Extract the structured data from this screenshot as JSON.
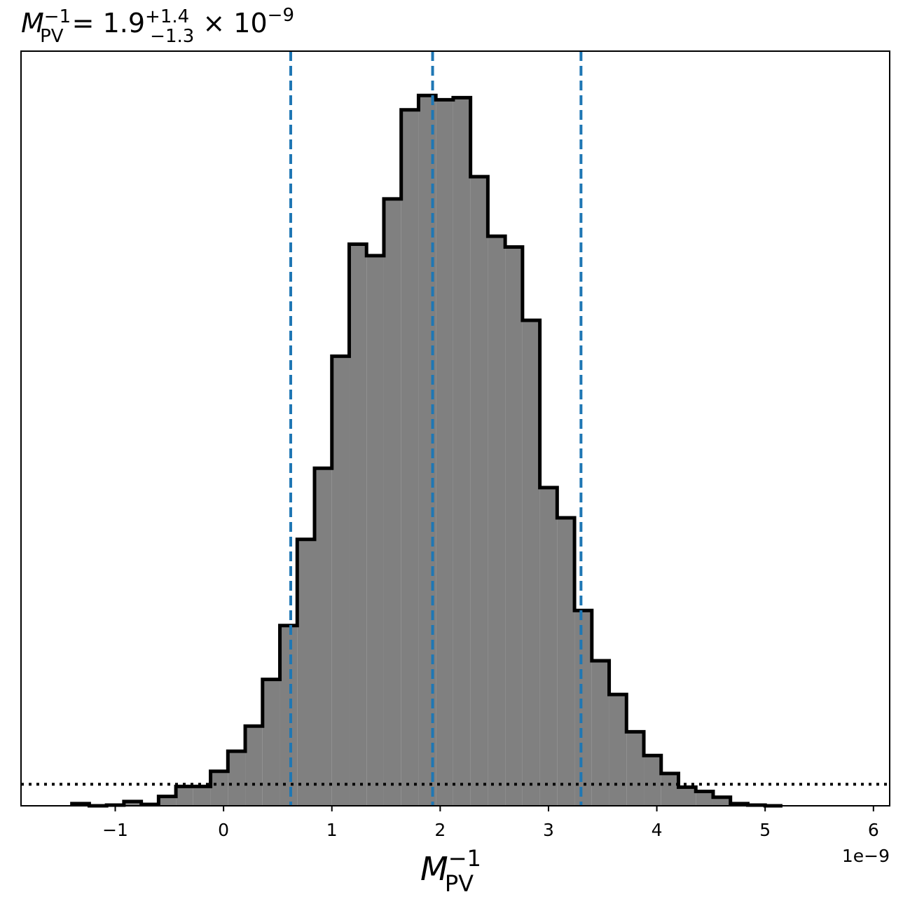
{
  "chart_data": {
    "type": "bar",
    "title": {
      "symbol": "M",
      "subscript": "PV",
      "superscript": "−1",
      "middle": " = 1.9",
      "upper": "+1.4",
      "lower": "−1.3",
      "times": " × 10",
      "exponent": "−9"
    },
    "xlabel": {
      "symbol": "M",
      "subscript": "PV",
      "superscript": "−1"
    },
    "x_offset_label": "1e−9",
    "xlim": [
      -1.87,
      6.15
    ],
    "ylim": [
      0,
      1.0
    ],
    "x_ticks": [
      -1,
      0,
      1,
      2,
      3,
      4,
      5,
      6
    ],
    "x_tick_labels": [
      "−1",
      "0",
      "1",
      "2",
      "3",
      "4",
      "5",
      "6"
    ],
    "bin_edges": [
      -1.4,
      -1.24,
      -1.08,
      -0.92,
      -0.76,
      -0.6,
      -0.44,
      -0.28,
      -0.12,
      0.04,
      0.2,
      0.36,
      0.52,
      0.68,
      0.84,
      1.0,
      1.16,
      1.32,
      1.48,
      1.64,
      1.8,
      1.96,
      2.12,
      2.28,
      2.44,
      2.6,
      2.76,
      2.92,
      3.08,
      3.24,
      3.4,
      3.56,
      3.72,
      3.88,
      4.04,
      4.2,
      4.36,
      4.52,
      4.68,
      4.84,
      5.0,
      5.16
    ],
    "values": [
      0.003,
      0.0,
      0.001,
      0.006,
      0.002,
      0.013,
      0.027,
      0.027,
      0.048,
      0.076,
      0.111,
      0.176,
      0.251,
      0.371,
      0.47,
      0.626,
      0.782,
      0.766,
      0.845,
      0.969,
      0.989,
      0.983,
      0.986,
      0.876,
      0.793,
      0.778,
      0.676,
      0.443,
      0.401,
      0.272,
      0.202,
      0.155,
      0.103,
      0.07,
      0.045,
      0.026,
      0.02,
      0.012,
      0.003,
      0.001,
      0.0
    ],
    "hist_fill": "#808080",
    "hist_edge": "#000000",
    "quantile_lines": [
      0.62,
      1.93,
      3.3
    ],
    "quantile_color": "#1f77b4",
    "reference_level": 0.03,
    "grid": false
  }
}
